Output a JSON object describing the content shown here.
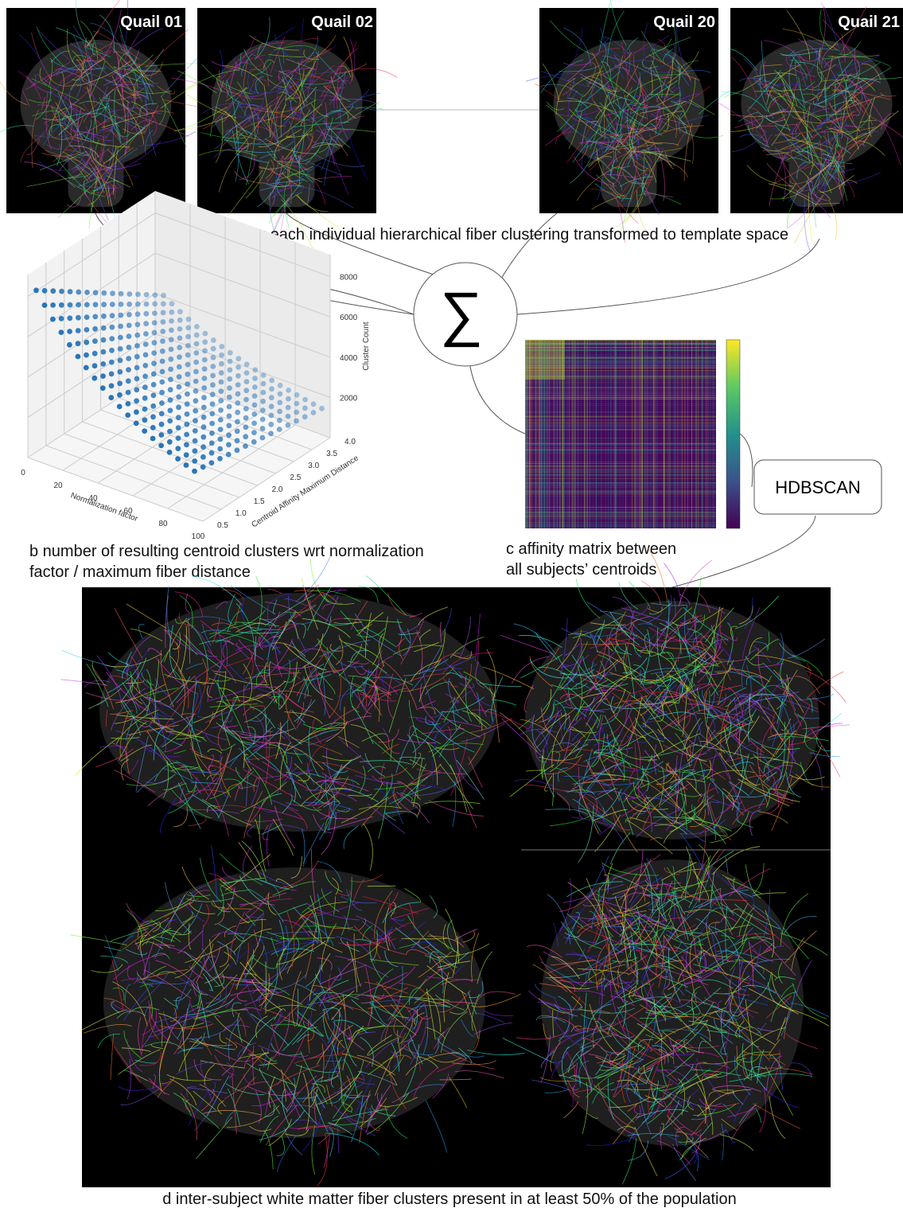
{
  "panel_a": {
    "images": [
      "Quail 01",
      "Quail 02",
      "Quail 20",
      "Quail 21"
    ],
    "caption": "a  centroid maps for each individual hierarchical fiber clustering transformed to template space"
  },
  "sum_symbol": "∑",
  "panel_b": {
    "x_label": "Normalization factor",
    "x_ticks": [
      "0",
      "20",
      "40",
      "60",
      "80",
      "100"
    ],
    "y_label": "Centroid Affinity Maximum Distance",
    "y_ticks": [
      "0.5",
      "1.0",
      "1.5",
      "2.0",
      "2.5",
      "3.0",
      "3.5",
      "4.0"
    ],
    "z_label": "Cluster Count",
    "z_ticks": [
      "2000",
      "4000",
      "6000",
      "8000"
    ],
    "caption": [
      "b  number of resulting centroid clusters wrt  normalization",
      "factor / maximum fiber distance"
    ]
  },
  "panel_c": {
    "caption": [
      "c  affinity matrix between",
      "all subjects’ centroids"
    ]
  },
  "hdbscan": "HDBSCAN",
  "panel_d": {
    "caption": "d  inter-subject white matter fiber clusters present in at least 50% of the population"
  }
}
